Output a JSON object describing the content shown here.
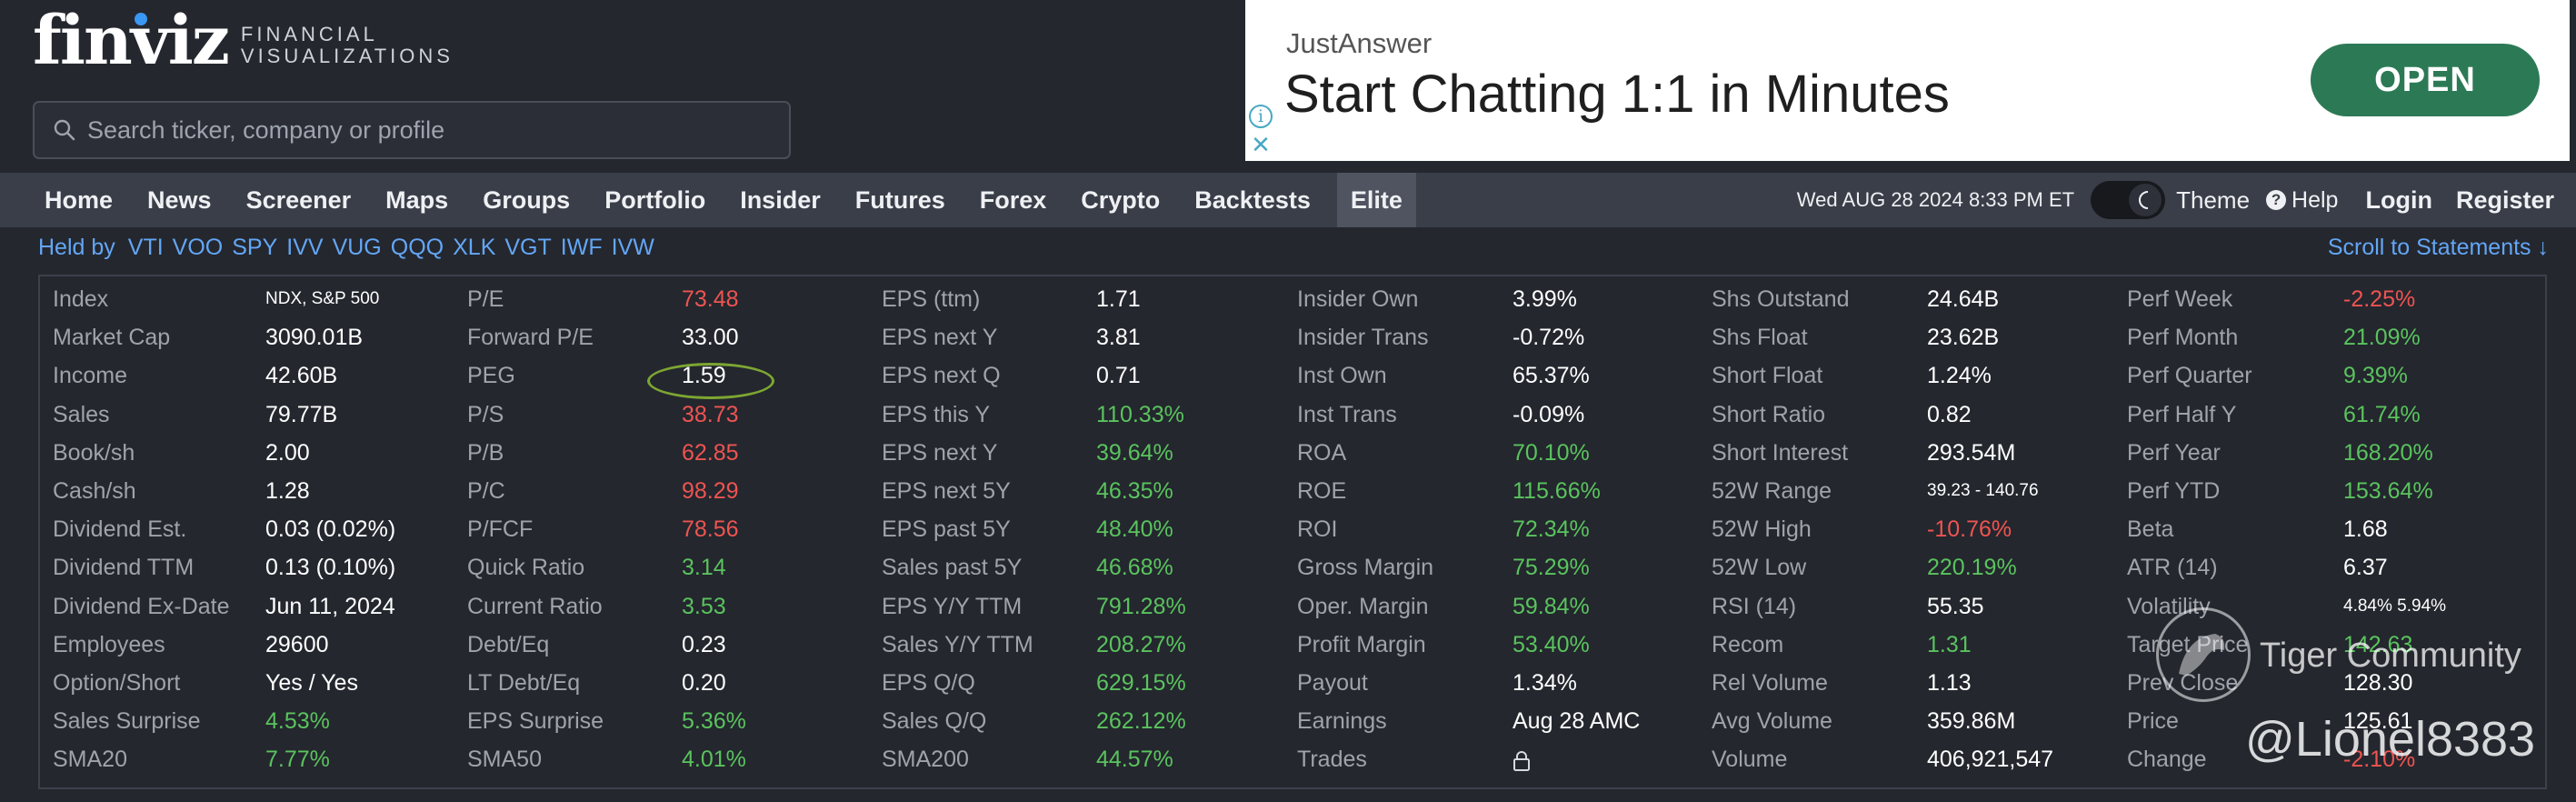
{
  "header": {
    "logo_word": "finviz",
    "logo_tag_line1": "FINANCIAL",
    "logo_tag_line2": "VISUALIZATIONS",
    "search_placeholder": "Search ticker, company or profile"
  },
  "ad": {
    "brand": "JustAnswer",
    "headline": "Start Chatting 1:1 in Minutes",
    "button": "OPEN",
    "info_glyph": "i",
    "close_glyph": "✕"
  },
  "nav": {
    "items": [
      "Home",
      "News",
      "Screener",
      "Maps",
      "Groups",
      "Portfolio",
      "Insider",
      "Futures",
      "Forex",
      "Crypto",
      "Backtests",
      "Elite"
    ],
    "datetime": "Wed AUG 28 2024 8:33 PM ET",
    "theme": "Theme",
    "help": "Help",
    "help_glyph": "?",
    "login": "Login",
    "register": "Register"
  },
  "held_by": {
    "label": "Held by",
    "tickers": [
      "VTI",
      "VOO",
      "SPY",
      "IVV",
      "VUG",
      "QQQ",
      "XLK",
      "VGT",
      "IWF",
      "IVW"
    ],
    "scroll_link": "Scroll to Statements ↓"
  },
  "stats": {
    "columns": [
      [
        {
          "label": "Index",
          "value": "NDX, S&P 500",
          "small": true
        },
        {
          "label": "Market Cap",
          "value": "3090.01B"
        },
        {
          "label": "Income",
          "value": "42.60B"
        },
        {
          "label": "Sales",
          "value": "79.77B"
        },
        {
          "label": "Book/sh",
          "value": "2.00"
        },
        {
          "label": "Cash/sh",
          "value": "1.28"
        },
        {
          "label": "Dividend Est.",
          "value": "0.03 (0.02%)"
        },
        {
          "label": "Dividend TTM",
          "value": "0.13 (0.10%)"
        },
        {
          "label": "Dividend Ex-Date",
          "value": "Jun 11, 2024"
        },
        {
          "label": "Employees",
          "value": "29600"
        },
        {
          "label": "Option/Short",
          "value": "Yes / Yes"
        },
        {
          "label": "Sales Surprise",
          "value": "4.53%",
          "color": "pos"
        },
        {
          "label": "SMA20",
          "value": "7.77%",
          "color": "pos"
        }
      ],
      [
        {
          "label": "P/E",
          "value": "73.48",
          "color": "neg"
        },
        {
          "label": "Forward P/E",
          "value": "33.00"
        },
        {
          "label": "PEG",
          "value": "1.59"
        },
        {
          "label": "P/S",
          "value": "38.73",
          "color": "neg"
        },
        {
          "label": "P/B",
          "value": "62.85",
          "color": "neg"
        },
        {
          "label": "P/C",
          "value": "98.29",
          "color": "neg"
        },
        {
          "label": "P/FCF",
          "value": "78.56",
          "color": "neg"
        },
        {
          "label": "Quick Ratio",
          "value": "3.14",
          "color": "pos"
        },
        {
          "label": "Current Ratio",
          "value": "3.53",
          "color": "pos"
        },
        {
          "label": "Debt/Eq",
          "value": "0.23"
        },
        {
          "label": "LT Debt/Eq",
          "value": "0.20"
        },
        {
          "label": "EPS Surprise",
          "value": "5.36%",
          "color": "pos"
        },
        {
          "label": "SMA50",
          "value": "4.01%",
          "color": "pos"
        }
      ],
      [
        {
          "label": "EPS (ttm)",
          "value": "1.71"
        },
        {
          "label": "EPS next Y",
          "value": "3.81"
        },
        {
          "label": "EPS next Q",
          "value": "0.71"
        },
        {
          "label": "EPS this Y",
          "value": "110.33%",
          "color": "pos"
        },
        {
          "label": "EPS next Y",
          "value": "39.64%",
          "color": "pos"
        },
        {
          "label": "EPS next 5Y",
          "value": "46.35%",
          "color": "pos"
        },
        {
          "label": "EPS past 5Y",
          "value": "48.40%",
          "color": "pos"
        },
        {
          "label": "Sales past 5Y",
          "value": "46.68%",
          "color": "pos"
        },
        {
          "label": "EPS Y/Y TTM",
          "value": "791.28%",
          "color": "pos"
        },
        {
          "label": "Sales Y/Y TTM",
          "value": "208.27%",
          "color": "pos"
        },
        {
          "label": "EPS Q/Q",
          "value": "629.15%",
          "color": "pos"
        },
        {
          "label": "Sales Q/Q",
          "value": "262.12%",
          "color": "pos"
        },
        {
          "label": "SMA200",
          "value": "44.57%",
          "color": "pos"
        }
      ],
      [
        {
          "label": "Insider Own",
          "value": "3.99%"
        },
        {
          "label": "Insider Trans",
          "value": "-0.72%"
        },
        {
          "label": "Inst Own",
          "value": "65.37%"
        },
        {
          "label": "Inst Trans",
          "value": "-0.09%"
        },
        {
          "label": "ROA",
          "value": "70.10%",
          "color": "pos"
        },
        {
          "label": "ROE",
          "value": "115.66%",
          "color": "pos"
        },
        {
          "label": "ROI",
          "value": "72.34%",
          "color": "pos"
        },
        {
          "label": "Gross Margin",
          "value": "75.29%",
          "color": "pos"
        },
        {
          "label": "Oper. Margin",
          "value": "59.84%",
          "color": "pos"
        },
        {
          "label": "Profit Margin",
          "value": "53.40%",
          "color": "pos"
        },
        {
          "label": "Payout",
          "value": "1.34%"
        },
        {
          "label": "Earnings",
          "value": "Aug 28 AMC"
        },
        {
          "label": "Trades",
          "value": "",
          "icon": "lock-icon"
        }
      ],
      [
        {
          "label": "Shs Outstand",
          "value": "24.64B"
        },
        {
          "label": "Shs Float",
          "value": "23.62B"
        },
        {
          "label": "Short Float",
          "value": "1.24%"
        },
        {
          "label": "Short Ratio",
          "value": "0.82"
        },
        {
          "label": "Short Interest",
          "value": "293.54M"
        },
        {
          "label": "52W Range",
          "value": "39.23 - 140.76",
          "small": true
        },
        {
          "label": "52W High",
          "value": "-10.76%",
          "color": "neg"
        },
        {
          "label": "52W Low",
          "value": "220.19%",
          "color": "pos"
        },
        {
          "label": "RSI (14)",
          "value": "55.35"
        },
        {
          "label": "Recom",
          "value": "1.31",
          "color": "pos"
        },
        {
          "label": "Rel Volume",
          "value": "1.13"
        },
        {
          "label": "Avg Volume",
          "value": "359.86M"
        },
        {
          "label": "Volume",
          "value": "406,921,547"
        }
      ],
      [
        {
          "label": "Perf Week",
          "value": "-2.25%",
          "color": "neg"
        },
        {
          "label": "Perf Month",
          "value": "21.09%",
          "color": "pos"
        },
        {
          "label": "Perf Quarter",
          "value": "9.39%",
          "color": "pos"
        },
        {
          "label": "Perf Half Y",
          "value": "61.74%",
          "color": "pos"
        },
        {
          "label": "Perf Year",
          "value": "168.20%",
          "color": "pos"
        },
        {
          "label": "Perf YTD",
          "value": "153.64%",
          "color": "pos"
        },
        {
          "label": "Beta",
          "value": "1.68"
        },
        {
          "label": "ATR (14)",
          "value": "6.37"
        },
        {
          "label": "Volatility",
          "value": "4.84% 5.94%",
          "small": true
        },
        {
          "label": "Target Price",
          "value": "142.63",
          "color": "pos"
        },
        {
          "label": "Prev Close",
          "value": "128.30"
        },
        {
          "label": "Price",
          "value": "125.61"
        },
        {
          "label": "Change",
          "value": "-2.10%",
          "color": "neg"
        }
      ]
    ]
  },
  "watermark": {
    "community": "Tiger Community",
    "handle": "@Lionel8383"
  },
  "colors": {
    "background": "#24272e",
    "nav_bar": "#3a3e48",
    "positive": "#5ac35e",
    "negative": "#ee5451",
    "link": "#63a6f5",
    "ad_button": "#2c7a55",
    "peg_highlight": "#7da632"
  }
}
